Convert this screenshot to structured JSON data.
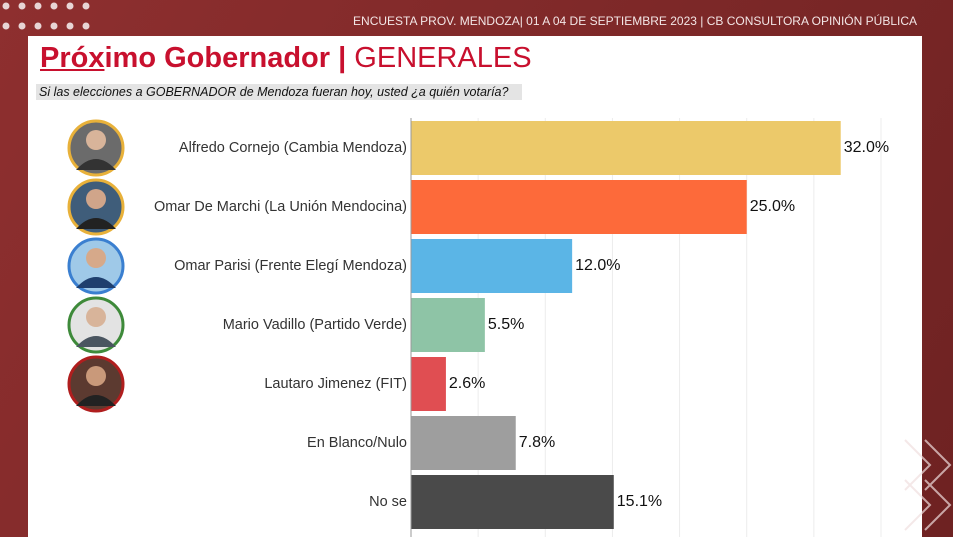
{
  "header": "ENCUESTA PROV. MENDOZA| 01 A 04 DE SEPTIEMBRE 2023 | CB CONSULTORA OPINIÓN PÚBLICA",
  "chart_data": {
    "type": "bar",
    "orientation": "horizontal",
    "title_parts": [
      "Próx",
      "imo Gobernador |",
      "GENERALES"
    ],
    "subtitle": "Si las elecciones a GOBERNADOR de Mendoza fueran hoy, usted ¿a quién votaría?",
    "categories": [
      "Alfredo Cornejo (Cambia Mendoza)",
      "Omar De Marchi (La Unión Mendocina)",
      "Omar Parisi (Frente Elegí Mendoza)",
      "Mario Vadillo (Partido Verde)",
      "Lautaro Jimenez (FIT)",
      "En Blanco/Nulo",
      "No se"
    ],
    "values": [
      32.0,
      25.0,
      12.0,
      5.5,
      2.6,
      7.8,
      15.1
    ],
    "value_labels": [
      "32.0%",
      "25.0%",
      "12.0%",
      "5.5%",
      "2.6%",
      "7.8%",
      "15.1%"
    ],
    "colors": [
      "#ecc96a",
      "#fd6a3a",
      "#5bb5e6",
      "#8ec4a6",
      "#e04e52",
      "#9e9e9e",
      "#4a4a4a"
    ],
    "xlim": [
      0,
      35
    ],
    "xticks": [
      0,
      5,
      10,
      15,
      20,
      25,
      30,
      35
    ],
    "grid": true
  }
}
